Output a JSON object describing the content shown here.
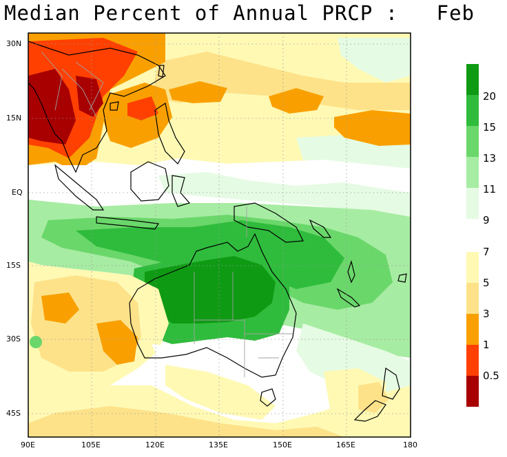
{
  "title": "Median Percent of Annual PRCP :   Feb",
  "lat_labels": [
    "30N",
    "15N",
    "EQ",
    "15S",
    "30S",
    "45S"
  ],
  "lon_labels": [
    "90E",
    "105E",
    "120E",
    "135E",
    "150E",
    "165E",
    "180"
  ],
  "legend_upper": {
    "colors": [
      "#0f9a13",
      "#2fbc3c",
      "#6ad76a",
      "#a7eca3",
      "#e5fbe3"
    ],
    "labels": [
      "20",
      "15",
      "13",
      "11",
      "9"
    ]
  },
  "legend_lower": {
    "colors": [
      "#fff9b4",
      "#fde28a",
      "#f9a000",
      "#ff4000",
      "#a80000"
    ],
    "labels": [
      "7",
      "5",
      "3",
      "1",
      "0.5"
    ]
  },
  "colors": {
    "land_outline": "#000000",
    "borders": "#a0a0a0",
    "grid": "#999999"
  }
}
